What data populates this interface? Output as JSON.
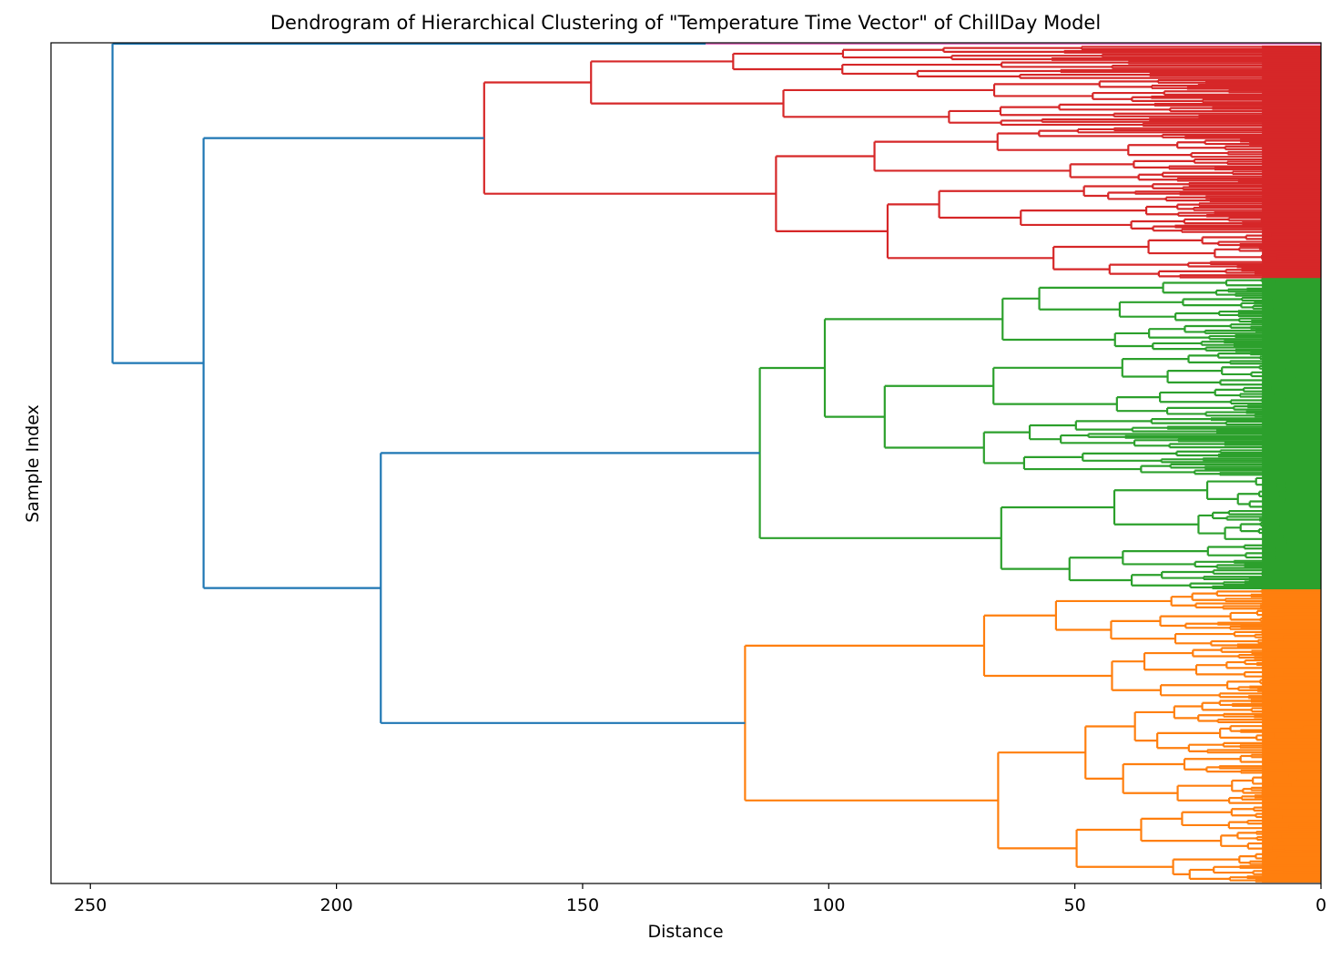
{
  "chart_data": {
    "type": "dendrogram",
    "orientation": "left",
    "title": "Dendrogram of Hierarchical Clustering of \"Temperature Time Vector\" of ChillDay Model",
    "xlabel": "Distance",
    "ylabel": "Sample Index",
    "xlim": [
      258,
      0
    ],
    "x_ticks": [
      250,
      200,
      150,
      100,
      50,
      0
    ],
    "grid": false,
    "root_color": "#1f77b4",
    "clusters": [
      {
        "color": "#d62728",
        "height": 170,
        "fraction": 0.28,
        "internal_merges": [
          148,
          125,
          97,
          75,
          66,
          57,
          47,
          40
        ]
      },
      {
        "color": "#2ca02c",
        "height": 114,
        "fraction": 0.37,
        "internal_merges": [
          84,
          72,
          64,
          69,
          58,
          46,
          40
        ]
      },
      {
        "color": "#ff7f0e",
        "height": 117,
        "fraction": 0.35,
        "internal_merges": [
          115,
          91,
          82,
          78,
          68,
          56,
          50
        ]
      }
    ],
    "cluster_minor": {
      "color": "#e377c2",
      "height": 125
    },
    "root_merges": [
      {
        "height": 245.5,
        "children": [
          "cluster-red-top",
          "merge-227"
        ]
      },
      {
        "height": 227,
        "children": [
          "cluster-red",
          "merge-191"
        ]
      },
      {
        "height": 191,
        "children": [
          "cluster-green",
          "cluster-orange"
        ]
      }
    ]
  }
}
